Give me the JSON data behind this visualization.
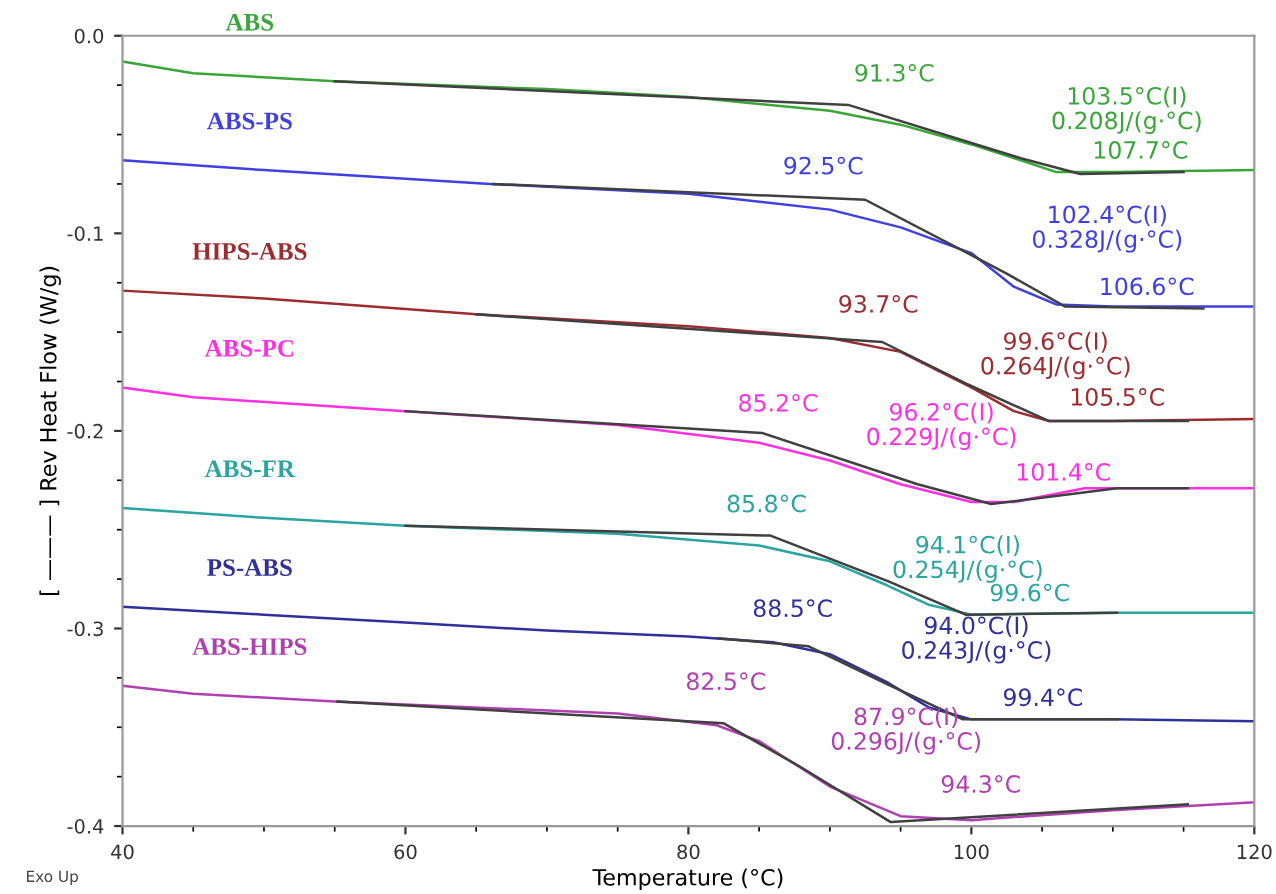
{
  "chart_data": {
    "type": "line",
    "xlabel": "Temperature (°C)",
    "ylabel": "[ ——— ] Rev Heat Flow (W/g)",
    "xlim": [
      40,
      120
    ],
    "ylim": [
      -0.4,
      0.0
    ],
    "xticks": [
      40,
      60,
      80,
      100,
      120
    ],
    "yticks": [
      {
        "value": -0.4,
        "label": "-0.4"
      },
      {
        "value": -0.3,
        "label": "-0.3"
      },
      {
        "value": -0.2,
        "label": "-0.2"
      },
      {
        "value": -0.1,
        "label": "-0.1"
      },
      {
        "value": 0,
        "label": "0.0"
      }
    ],
    "grid": false,
    "legend": false,
    "line_style": "solid",
    "marker": "none",
    "series": [
      {
        "name": "ABS",
        "color": "#3aa63a",
        "x": [
          40,
          45,
          55,
          70,
          80,
          90,
          95,
          100,
          103.5,
          106,
          110,
          120
        ],
        "values": [
          -0.013,
          -0.019,
          -0.023,
          -0.027,
          -0.031,
          -0.038,
          -0.045,
          -0.055,
          -0.063,
          -0.069,
          -0.069,
          -0.068
        ]
      },
      {
        "name": "ABS-PS",
        "color": "#4040e0",
        "x": [
          40,
          50,
          66,
          80,
          90,
          95,
          100,
          103,
          106,
          110,
          120
        ],
        "values": [
          -0.063,
          -0.068,
          -0.075,
          -0.08,
          -0.088,
          -0.097,
          -0.11,
          -0.127,
          -0.136,
          -0.137,
          -0.137
        ]
      },
      {
        "name": "HIPS-ABS",
        "color": "#9b2d30",
        "x": [
          40,
          50,
          65,
          80,
          90,
          95,
          100,
          103,
          105.5,
          110,
          120
        ],
        "values": [
          -0.129,
          -0.133,
          -0.141,
          -0.147,
          -0.153,
          -0.16,
          -0.178,
          -0.19,
          -0.195,
          -0.195,
          -0.194
        ]
      },
      {
        "name": "ABS-PC",
        "color": "#ff30e0",
        "x": [
          40,
          45,
          60,
          75,
          85,
          90,
          95,
          100,
          103,
          108,
          120
        ],
        "values": [
          -0.178,
          -0.183,
          -0.19,
          -0.197,
          -0.206,
          -0.215,
          -0.227,
          -0.236,
          -0.236,
          -0.229,
          -0.229
        ]
      },
      {
        "name": "ABS-FR",
        "color": "#2aa5a0",
        "x": [
          40,
          50,
          60,
          75,
          85,
          90,
          94,
          97,
          100,
          110,
          120
        ],
        "values": [
          -0.239,
          -0.244,
          -0.248,
          -0.252,
          -0.258,
          -0.266,
          -0.278,
          -0.288,
          -0.293,
          -0.292,
          -0.292
        ]
      },
      {
        "name": "PS-ABS",
        "color": "#30309a",
        "x": [
          40,
          50,
          60,
          70,
          80,
          86,
          90,
          94,
          97,
          100,
          110,
          120
        ],
        "values": [
          -0.289,
          -0.293,
          -0.297,
          -0.301,
          -0.304,
          -0.307,
          -0.313,
          -0.327,
          -0.34,
          -0.346,
          -0.346,
          -0.347
        ]
      },
      {
        "name": "ABS-HIPS",
        "color": "#b040b0",
        "x": [
          40,
          45,
          55,
          75,
          82,
          85,
          90,
          95,
          100,
          110,
          120
        ],
        "values": [
          -0.329,
          -0.333,
          -0.337,
          -0.343,
          -0.349,
          -0.357,
          -0.38,
          -0.395,
          -0.397,
          -0.392,
          -0.388
        ]
      },
      {
        "color": "#404040",
        "x": [
          55,
          91.3,
          103.5,
          107.7,
          115
        ],
        "values": [
          -0.023,
          -0.035,
          -0.062,
          -0.07,
          -0.069
        ]
      },
      {
        "color": "#404040",
        "x": [
          66.2,
          92.5,
          102.4,
          106.6,
          116.4
        ],
        "values": [
          -0.075,
          -0.083,
          -0.12,
          -0.137,
          -0.138
        ]
      },
      {
        "color": "#404040",
        "x": [
          65,
          93.7,
          99.6,
          105.5,
          115.3
        ],
        "values": [
          -0.141,
          -0.155,
          -0.176,
          -0.195,
          -0.195
        ]
      },
      {
        "color": "#404040",
        "x": [
          60,
          85.2,
          96.2,
          101.4,
          110.3,
          115.3
        ],
        "values": [
          -0.19,
          -0.201,
          -0.227,
          -0.237,
          -0.229,
          -0.229
        ]
      },
      {
        "color": "#404040",
        "x": [
          60,
          85.8,
          94.1,
          99.6,
          110.3
        ],
        "values": [
          -0.248,
          -0.253,
          -0.276,
          -0.293,
          -0.292
        ]
      },
      {
        "color": "#404040",
        "x": [
          82.1,
          88.5,
          94.0,
          99.4,
          110.3
        ],
        "values": [
          -0.305,
          -0.309,
          -0.328,
          -0.346,
          -0.346
        ]
      },
      {
        "color": "#404040",
        "x": [
          55.2,
          82.5,
          87.9,
          94.3,
          115.3
        ],
        "values": [
          -0.337,
          -0.348,
          -0.37,
          -0.398,
          -0.389
        ]
      }
    ],
    "annotations": [
      {
        "text": "91.3°C",
        "x": 91.3,
        "y": -0.035
      },
      {
        "text": "103.5°C(I)\n0.208J/(g·°C)",
        "x": 103.5,
        "y": -0.062
      },
      {
        "text": "107.7°C",
        "x": 107.7,
        "y": -0.07
      },
      {
        "text": "92.5°C",
        "x": 92.5,
        "y": -0.083
      },
      {
        "text": "102.4°C(I)\n0.328J/(g·°C)",
        "x": 102.4,
        "y": -0.12
      },
      {
        "text": "106.6°C",
        "x": 106.6,
        "y": -0.137
      },
      {
        "text": "93.7°C",
        "x": 93.7,
        "y": -0.155
      },
      {
        "text": "99.6°C(I)\n0.264J/(g·°C)",
        "x": 99.6,
        "y": -0.176
      },
      {
        "text": "105.5°C",
        "x": 105.5,
        "y": -0.195
      },
      {
        "text": "85.2°C",
        "x": 85.2,
        "y": -0.201
      },
      {
        "text": "96.2°C(I)\n0.229J/(g·°C)",
        "x": 96.2,
        "y": -0.227
      },
      {
        "text": "101.4°C",
        "x": 101.4,
        "y": -0.237
      },
      {
        "text": "85.8°C",
        "x": 85.8,
        "y": -0.253
      },
      {
        "text": "94.1°C(I)\n0.254J/(g·°C)",
        "x": 94.1,
        "y": -0.276
      },
      {
        "text": "99.6°C",
        "x": 99.6,
        "y": -0.293
      },
      {
        "text": "88.5°C",
        "x": 88.5,
        "y": -0.309
      },
      {
        "text": "94.0°C(I)\n0.243J/(g·°C)",
        "x": 94.0,
        "y": -0.328
      },
      {
        "text": "99.4°C",
        "x": 99.4,
        "y": -0.346
      },
      {
        "text": "82.5°C",
        "x": 82.5,
        "y": -0.348
      },
      {
        "text": "87.9°C(I)\n0.296J/(g·°C)",
        "x": 87.9,
        "y": -0.37
      },
      {
        "text": "94.3°C",
        "x": 94.3,
        "y": -0.398
      },
      "Exo Up"
    ]
  }
}
